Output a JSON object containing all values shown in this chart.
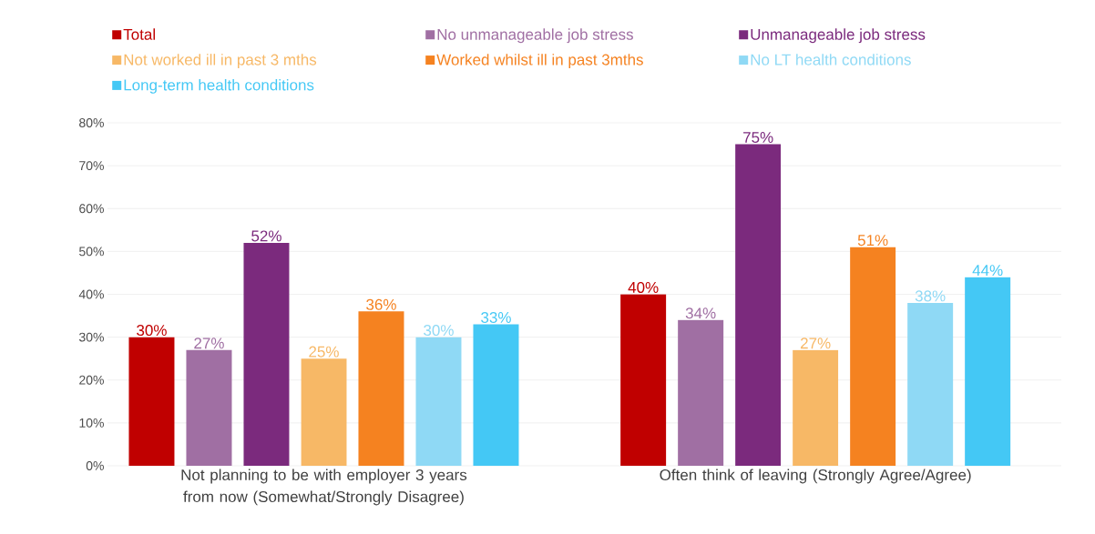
{
  "chart_data": {
    "type": "bar",
    "categories": [
      "Not planning to be with employer 3 years from now (Somewhat/Strongly Disagree)",
      "Often think of leaving (Strongly Agree/Agree)"
    ],
    "series": [
      {
        "name": "Total",
        "color": "#c00000",
        "values": [
          30,
          40
        ],
        "value_labels": [
          "30%",
          "40%"
        ]
      },
      {
        "name": "No unmanageable job stress",
        "color": "#a06fa3",
        "values": [
          27,
          34
        ],
        "value_labels": [
          "27%",
          "34%"
        ]
      },
      {
        "name": "Unmanageable job stress",
        "color": "#7b2a7d",
        "values": [
          52,
          75
        ],
        "value_labels": [
          "52%",
          "75%"
        ]
      },
      {
        "name": "Not worked ill in past 3 mths",
        "color": "#f7b866",
        "values": [
          25,
          27
        ],
        "value_labels": [
          "25%",
          "27%"
        ]
      },
      {
        "name": "Worked whilst ill in past 3mths",
        "color": "#f58220",
        "values": [
          36,
          51
        ],
        "value_labels": [
          "36%",
          "51%"
        ]
      },
      {
        "name": "No LT health conditions",
        "color": "#8fd9f5",
        "values": [
          30,
          38
        ],
        "value_labels": [
          "30%",
          "38%"
        ]
      },
      {
        "name": "Long-term health conditions",
        "color": "#44c8f5",
        "values": [
          33,
          44
        ],
        "value_labels": [
          "33%",
          "44%"
        ]
      }
    ],
    "ylim": [
      0,
      80
    ],
    "yticks": [
      {
        "value": 0,
        "label": "0%"
      },
      {
        "value": 10,
        "label": "10%"
      },
      {
        "value": 20,
        "label": "20%"
      },
      {
        "value": 30,
        "label": "30%"
      },
      {
        "value": 40,
        "label": "40%"
      },
      {
        "value": 50,
        "label": "50%"
      },
      {
        "value": 60,
        "label": "60%"
      },
      {
        "value": 70,
        "label": "70%"
      },
      {
        "value": 80,
        "label": "80%"
      }
    ],
    "grid": "y",
    "legend": "top"
  }
}
